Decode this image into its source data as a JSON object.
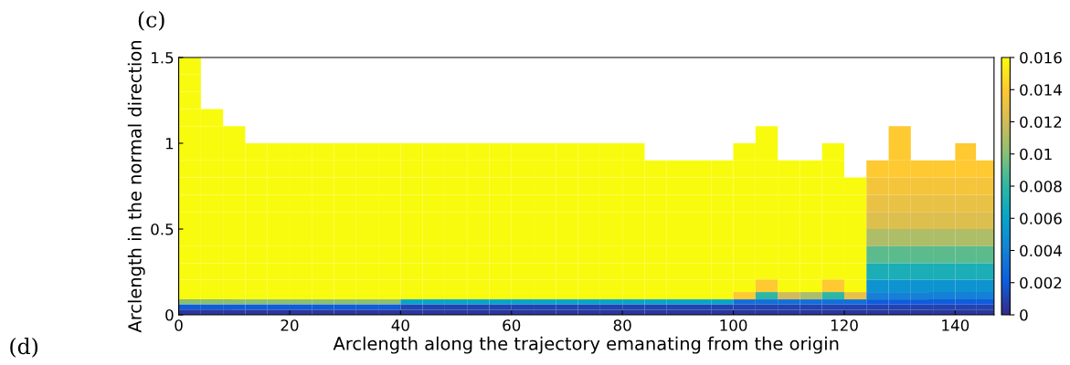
{
  "chart_data": {
    "type": "heatmap",
    "title": "(c)",
    "annotations": [
      "(d)"
    ],
    "xlabel": "Arclength along the trajectory emanating from the origin",
    "ylabel": "Arclength in the normal direction",
    "x": [
      2,
      6,
      10,
      14,
      18,
      22,
      26,
      30,
      34,
      38,
      42,
      46,
      50,
      54,
      58,
      62,
      66,
      70,
      74,
      78,
      82,
      86,
      90,
      94,
      98,
      102,
      106,
      110,
      114,
      118,
      122,
      126,
      130,
      134,
      138,
      142,
      145.5
    ],
    "y": [
      1.45,
      1.35,
      1.25,
      1.15,
      1.05,
      0.95,
      0.85,
      0.75,
      0.65,
      0.55,
      0.45,
      0.35,
      0.25,
      0.16,
      0.105,
      0.075,
      0.045,
      0.015
    ],
    "xlim": [
      0,
      147
    ],
    "ylim": [
      0,
      1.5
    ],
    "xticks": [
      0,
      20,
      40,
      60,
      80,
      100,
      120,
      140
    ],
    "yticks": [
      0,
      0.5,
      1,
      1.5
    ],
    "clim": [
      0,
      0.016
    ],
    "cticks": [
      0,
      0.002,
      0.004,
      0.006,
      0.008,
      0.01,
      0.012,
      0.014,
      0.016
    ],
    "colors": [
      "#352a87",
      "#0f5cdd",
      "#1481d6",
      "#06a4ca",
      "#2eb7a4",
      "#87bf77",
      "#d1bb59",
      "#fec832",
      "#f9fb0e"
    ],
    "cells": [
      [
        0.016,
        null,
        null,
        null,
        null,
        null,
        null,
        null,
        null,
        null,
        null,
        null,
        null,
        null,
        null,
        null,
        null,
        null,
        null,
        null,
        null,
        null,
        null,
        null,
        null,
        null,
        null,
        null,
        null,
        null,
        null,
        null,
        null,
        null,
        null,
        null,
        null
      ],
      [
        0.016,
        null,
        null,
        null,
        null,
        null,
        null,
        null,
        null,
        null,
        null,
        null,
        null,
        null,
        null,
        null,
        null,
        null,
        null,
        null,
        null,
        null,
        null,
        null,
        null,
        null,
        null,
        null,
        null,
        null,
        null,
        null,
        null,
        null,
        null,
        null,
        null
      ],
      [
        0.016,
        null,
        null,
        null,
        null,
        null,
        null,
        null,
        null,
        null,
        null,
        null,
        null,
        null,
        null,
        null,
        null,
        null,
        null,
        null,
        null,
        null,
        null,
        null,
        null,
        null,
        null,
        null,
        null,
        null,
        null,
        null,
        null,
        null,
        null,
        null,
        null
      ],
      [
        0.016,
        0.016,
        null,
        null,
        null,
        null,
        null,
        null,
        null,
        null,
        null,
        null,
        null,
        null,
        null,
        null,
        null,
        null,
        null,
        null,
        null,
        null,
        null,
        null,
        null,
        null,
        null,
        null,
        null,
        null,
        null,
        null,
        null,
        null,
        null,
        null,
        null
      ],
      [
        0.016,
        0.016,
        0.016,
        null,
        null,
        null,
        null,
        null,
        null,
        null,
        null,
        null,
        null,
        null,
        null,
        null,
        null,
        null,
        null,
        null,
        null,
        null,
        null,
        null,
        null,
        null,
        0.016,
        null,
        null,
        null,
        null,
        null,
        0.014,
        null,
        null,
        null,
        null
      ],
      [
        0.016,
        0.016,
        0.016,
        0.016,
        0.016,
        0.016,
        0.016,
        0.016,
        0.016,
        0.016,
        0.016,
        0.016,
        0.016,
        0.016,
        0.016,
        0.016,
        0.016,
        0.016,
        0.016,
        0.016,
        0.016,
        null,
        null,
        null,
        null,
        0.016,
        0.016,
        null,
        null,
        0.016,
        null,
        null,
        0.014,
        null,
        null,
        0.014,
        null
      ],
      [
        0.016,
        0.016,
        0.016,
        0.016,
        0.016,
        0.016,
        0.016,
        0.016,
        0.016,
        0.016,
        0.016,
        0.016,
        0.016,
        0.016,
        0.016,
        0.016,
        0.016,
        0.016,
        0.016,
        0.016,
        0.016,
        0.016,
        0.016,
        0.016,
        0.016,
        0.016,
        0.016,
        0.016,
        0.016,
        0.016,
        null,
        0.014,
        0.014,
        0.014,
        0.014,
        0.014,
        0.014
      ],
      [
        0.016,
        0.016,
        0.016,
        0.016,
        0.016,
        0.016,
        0.016,
        0.016,
        0.016,
        0.016,
        0.016,
        0.016,
        0.016,
        0.016,
        0.016,
        0.016,
        0.016,
        0.016,
        0.016,
        0.016,
        0.016,
        0.016,
        0.016,
        0.016,
        0.016,
        0.016,
        0.016,
        0.016,
        0.016,
        0.016,
        0.016,
        0.0135,
        0.0135,
        0.0135,
        0.0135,
        0.0135,
        0.0135
      ],
      [
        0.016,
        0.016,
        0.016,
        0.016,
        0.016,
        0.016,
        0.016,
        0.016,
        0.016,
        0.016,
        0.016,
        0.016,
        0.016,
        0.016,
        0.016,
        0.016,
        0.016,
        0.016,
        0.016,
        0.016,
        0.016,
        0.016,
        0.016,
        0.016,
        0.016,
        0.016,
        0.016,
        0.016,
        0.016,
        0.016,
        0.016,
        0.013,
        0.013,
        0.013,
        0.013,
        0.013,
        0.013
      ],
      [
        0.016,
        0.016,
        0.016,
        0.016,
        0.016,
        0.016,
        0.016,
        0.016,
        0.016,
        0.016,
        0.016,
        0.016,
        0.016,
        0.016,
        0.016,
        0.016,
        0.016,
        0.016,
        0.016,
        0.016,
        0.016,
        0.016,
        0.016,
        0.016,
        0.016,
        0.016,
        0.016,
        0.016,
        0.016,
        0.016,
        0.016,
        0.0125,
        0.0125,
        0.0125,
        0.0125,
        0.0125,
        0.0125
      ],
      [
        0.016,
        0.016,
        0.016,
        0.016,
        0.016,
        0.016,
        0.016,
        0.016,
        0.016,
        0.016,
        0.016,
        0.016,
        0.016,
        0.016,
        0.016,
        0.016,
        0.016,
        0.016,
        0.016,
        0.016,
        0.016,
        0.016,
        0.016,
        0.016,
        0.016,
        0.016,
        0.016,
        0.016,
        0.016,
        0.016,
        0.016,
        0.011,
        0.011,
        0.011,
        0.011,
        0.011,
        0.011
      ],
      [
        0.016,
        0.016,
        0.016,
        0.016,
        0.016,
        0.016,
        0.016,
        0.016,
        0.016,
        0.016,
        0.016,
        0.016,
        0.016,
        0.016,
        0.016,
        0.016,
        0.016,
        0.016,
        0.016,
        0.016,
        0.016,
        0.016,
        0.016,
        0.016,
        0.016,
        0.016,
        0.016,
        0.016,
        0.016,
        0.016,
        0.016,
        0.009,
        0.009,
        0.009,
        0.009,
        0.009,
        0.009
      ],
      [
        0.016,
        0.016,
        0.016,
        0.016,
        0.016,
        0.016,
        0.016,
        0.016,
        0.016,
        0.016,
        0.016,
        0.016,
        0.016,
        0.016,
        0.016,
        0.016,
        0.016,
        0.016,
        0.016,
        0.016,
        0.016,
        0.016,
        0.016,
        0.016,
        0.016,
        0.016,
        0.016,
        0.016,
        0.016,
        0.016,
        0.016,
        0.007,
        0.007,
        0.007,
        0.007,
        0.007,
        0.007
      ],
      [
        0.016,
        0.016,
        0.016,
        0.016,
        0.016,
        0.016,
        0.016,
        0.016,
        0.016,
        0.016,
        0.016,
        0.016,
        0.016,
        0.016,
        0.016,
        0.016,
        0.016,
        0.016,
        0.016,
        0.016,
        0.016,
        0.016,
        0.016,
        0.016,
        0.016,
        0.016,
        0.014,
        0.016,
        0.016,
        0.014,
        0.016,
        0.005,
        0.005,
        0.005,
        0.005,
        0.005,
        0.005
      ],
      [
        0.016,
        0.016,
        0.016,
        0.016,
        0.016,
        0.016,
        0.016,
        0.016,
        0.016,
        0.016,
        0.016,
        0.016,
        0.016,
        0.016,
        0.016,
        0.016,
        0.016,
        0.016,
        0.016,
        0.016,
        0.016,
        0.016,
        0.016,
        0.016,
        0.016,
        0.014,
        0.008,
        0.012,
        0.011,
        0.008,
        0.013,
        0.004,
        0.004,
        0.004,
        0.004,
        0.004,
        0.004
      ],
      [
        0.01,
        0.01,
        0.01,
        0.01,
        0.01,
        0.01,
        0.01,
        0.01,
        0.01,
        0.01,
        0.006,
        0.006,
        0.006,
        0.006,
        0.006,
        0.006,
        0.006,
        0.006,
        0.006,
        0.006,
        0.006,
        0.006,
        0.006,
        0.006,
        0.006,
        0.003,
        0.003,
        0.003,
        0.003,
        0.003,
        0.003,
        0.002,
        0.002,
        0.002,
        0.002,
        0.002,
        0.002
      ],
      [
        0.002,
        0.002,
        0.002,
        0.002,
        0.002,
        0.002,
        0.002,
        0.002,
        0.002,
        0.002,
        0.001,
        0.001,
        0.001,
        0.001,
        0.001,
        0.001,
        0.001,
        0.001,
        0.001,
        0.001,
        0.001,
        0.001,
        0.001,
        0.001,
        0.001,
        0.001,
        0.001,
        0.001,
        0.001,
        0.001,
        0.001,
        0.001,
        0.001,
        0.001,
        0.001,
        0.001,
        0.001
      ],
      [
        0.0005,
        0.0005,
        0.0005,
        0.0005,
        0.0005,
        0.0005,
        0.0005,
        0.0005,
        0.0005,
        0.0005,
        0.0005,
        0.0005,
        0.0005,
        0.0005,
        0.0005,
        0.0005,
        0.0005,
        0.0005,
        0.0005,
        0.0005,
        0.0005,
        0.0005,
        0.0005,
        0.0005,
        0.0005,
        0.0005,
        0.0005,
        0.0005,
        0.0005,
        0.0005,
        0.0005,
        0.0005,
        0.0005,
        0.0005,
        0.0005,
        0.0005,
        0.0005
      ]
    ]
  }
}
